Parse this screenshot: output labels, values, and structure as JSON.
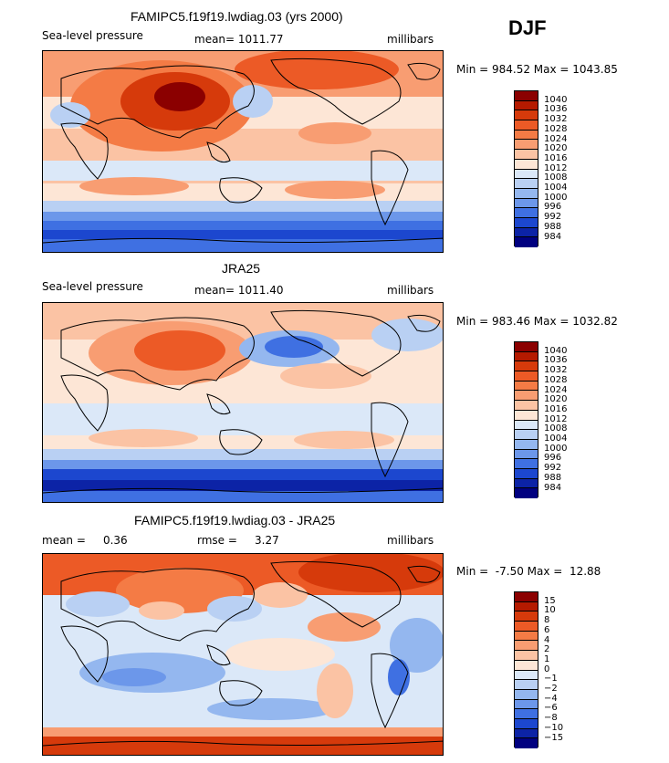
{
  "season": "DJF",
  "panels": [
    {
      "title": "FAMIPC5.f19f19.lwdiag.03 (yrs 2000)",
      "left_label": "Sea-level pressure",
      "mid_label": "mean= 1011.77",
      "units": "millibars",
      "minmax": "Min = 984.52 Max = 1043.85",
      "colorbar_labels": [
        "1040",
        "1036",
        "1032",
        "1028",
        "1024",
        "1020",
        "1016",
        "1012",
        "1008",
        "1004",
        "1000",
        "996",
        "992",
        "988",
        "984"
      ],
      "colorbar_colors": [
        "#8b0000",
        "#b51a00",
        "#d63a0b",
        "#ec5a26",
        "#f47b45",
        "#f89d72",
        "#fbc3a4",
        "#fde6d6",
        "#dbe8f8",
        "#b9d0f3",
        "#94b7ef",
        "#6c97ea",
        "#3f70e2",
        "#1c47cf",
        "#0c23a6",
        "#000080"
      ]
    },
    {
      "title": "JRA25",
      "left_label": "Sea-level pressure",
      "mid_label": "mean= 1011.40",
      "units": "millibars",
      "minmax": "Min = 983.46 Max = 1032.82",
      "colorbar_labels": [
        "1040",
        "1036",
        "1032",
        "1028",
        "1024",
        "1020",
        "1016",
        "1012",
        "1008",
        "1004",
        "1000",
        "996",
        "992",
        "988",
        "984"
      ],
      "colorbar_colors": [
        "#8b0000",
        "#b51a00",
        "#d63a0b",
        "#ec5a26",
        "#f47b45",
        "#f89d72",
        "#fbc3a4",
        "#fde6d6",
        "#dbe8f8",
        "#b9d0f3",
        "#94b7ef",
        "#6c97ea",
        "#3f70e2",
        "#1c47cf",
        "#0c23a6",
        "#000080"
      ]
    },
    {
      "title": "FAMIPC5.f19f19.lwdiag.03 - JRA25",
      "left_label": "mean =     0.36",
      "mid_label": "rmse =     3.27",
      "units": "millibars",
      "minmax": "Min =  -7.50 Max =  12.88",
      "colorbar_labels": [
        "15",
        "10",
        "8",
        "6",
        "4",
        "2",
        "1",
        "0",
        "−1",
        "−2",
        "−4",
        "−6",
        "−8",
        "−10",
        "−15"
      ],
      "colorbar_colors": [
        "#8b0000",
        "#b51a00",
        "#d63a0b",
        "#ec5a26",
        "#f47b45",
        "#f89d72",
        "#fbc3a4",
        "#fde6d6",
        "#dbe8f8",
        "#b9d0f3",
        "#94b7ef",
        "#6c97ea",
        "#3f70e2",
        "#1c47cf",
        "#0c23a6",
        "#000080"
      ]
    }
  ]
}
